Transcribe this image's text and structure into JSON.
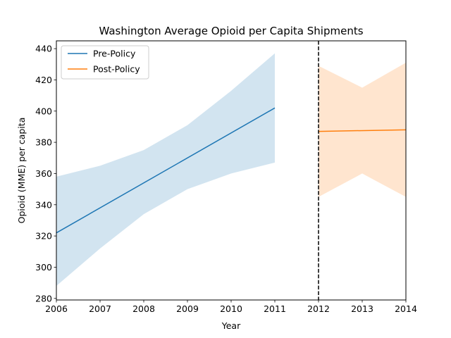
{
  "chart_data": {
    "type": "line",
    "title": "Washington Average Opioid per Capita Shipments",
    "xlabel": "Year",
    "ylabel": "Opioid (MME) per capita",
    "xlim": [
      2006,
      2014
    ],
    "ylim": [
      279,
      445
    ],
    "x_ticks": [
      2006,
      2007,
      2008,
      2009,
      2010,
      2011,
      2012,
      2013,
      2014
    ],
    "y_ticks": [
      280,
      300,
      320,
      340,
      360,
      380,
      400,
      420,
      440
    ],
    "grid": false,
    "legend_position": "top-left",
    "policy_line": {
      "x": 2012,
      "style": "dashed",
      "color": "#000000"
    },
    "series": [
      {
        "name": "Pre-Policy",
        "color": "#1f77b4",
        "band_color": "#1f77b4",
        "x": [
          2006,
          2011
        ],
        "y": [
          322,
          402
        ],
        "band_x": [
          2006,
          2007,
          2008,
          2009,
          2010,
          2011
        ],
        "band_upper": [
          358,
          365,
          375,
          391,
          413,
          437
        ],
        "band_lower": [
          288,
          312,
          334,
          350,
          360,
          367
        ]
      },
      {
        "name": "Post-Policy",
        "color": "#ff7f0e",
        "band_color": "#ff7f0e",
        "x": [
          2012,
          2014
        ],
        "y": [
          387,
          388
        ],
        "band_x": [
          2012,
          2013,
          2014
        ],
        "band_upper": [
          429,
          415,
          431
        ],
        "band_lower": [
          345,
          360,
          345
        ]
      }
    ]
  }
}
